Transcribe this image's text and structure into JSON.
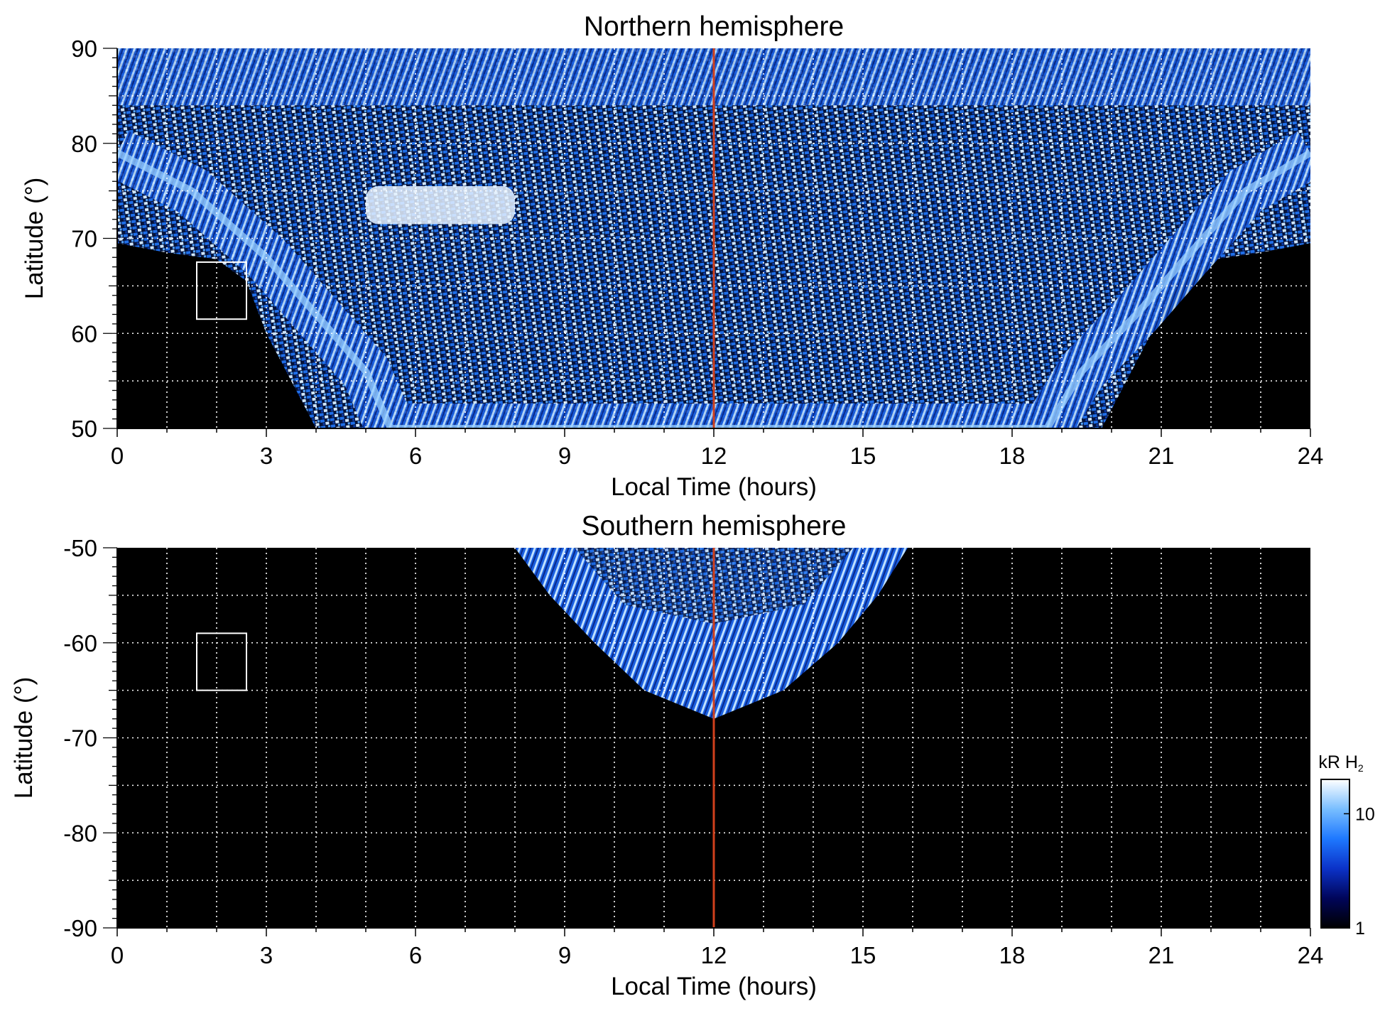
{
  "chart_data": [
    {
      "type": "heatmap",
      "title": "Northern hemisphere",
      "xlabel": "Local Time (hours)",
      "ylabel": "Latitude (°)",
      "xlim": [
        0,
        24
      ],
      "ylim": [
        50,
        90
      ],
      "xticks": [
        0,
        3,
        6,
        9,
        12,
        15,
        18,
        21,
        24
      ],
      "xtick_labels": [
        "0",
        "3",
        "6",
        "9",
        "12",
        "15",
        "18",
        "21",
        "24"
      ],
      "yticks": [
        50,
        60,
        70,
        80,
        90
      ],
      "ytick_labels": [
        "50",
        "60",
        "70",
        "80",
        "90"
      ],
      "grid": true,
      "vline_x": 12,
      "vline_color": "#d0401c",
      "box": {
        "x": [
          1.6,
          2.6
        ],
        "y": [
          61.5,
          67.5
        ]
      },
      "coverage_boundary": [
        [
          0,
          69.5
        ],
        [
          1,
          68.5
        ],
        [
          2,
          67.8
        ],
        [
          2.6,
          65.5
        ],
        [
          3,
          60
        ],
        [
          3.5,
          55
        ],
        [
          4,
          50
        ],
        [
          19.8,
          50
        ],
        [
          20.3,
          55
        ],
        [
          20.8,
          60
        ],
        [
          21.3,
          65
        ],
        [
          22.1,
          67.8
        ],
        [
          23,
          68.5
        ],
        [
          24,
          69.5
        ]
      ],
      "auroral_oval": [
        [
          0,
          79
        ],
        [
          1.5,
          75
        ],
        [
          3,
          68
        ],
        [
          4,
          62
        ],
        [
          5,
          56
        ],
        [
          5.5,
          50
        ],
        [
          18.7,
          50
        ],
        [
          19.4,
          56
        ],
        [
          20.5,
          62
        ],
        [
          21.5,
          68
        ],
        [
          22.7,
          75
        ],
        [
          24,
          79
        ]
      ],
      "cusp_feature": {
        "x": [
          5,
          8
        ],
        "y": [
          71.5,
          75.5
        ]
      }
    },
    {
      "type": "heatmap",
      "title": "Southern hemisphere",
      "xlabel": "Local Time (hours)",
      "ylabel": "Latitude (°)",
      "xlim": [
        0,
        24
      ],
      "ylim": [
        -90,
        -50
      ],
      "xticks": [
        0,
        3,
        6,
        9,
        12,
        15,
        18,
        21,
        24
      ],
      "xtick_labels": [
        "0",
        "3",
        "6",
        "9",
        "12",
        "15",
        "18",
        "21",
        "24"
      ],
      "yticks": [
        -90,
        -80,
        -70,
        -60,
        -50
      ],
      "ytick_labels": [
        "-90",
        "-80",
        "-70",
        "-60",
        "-50"
      ],
      "grid": true,
      "vline_x": 12,
      "vline_color": "#d0401c",
      "box": {
        "x": [
          1.6,
          2.6
        ],
        "y": [
          -65,
          -59
        ]
      },
      "coverage_boundary": [
        [
          8,
          -50
        ],
        [
          8.7,
          -55
        ],
        [
          9.6,
          -60
        ],
        [
          10.6,
          -65
        ],
        [
          12,
          -68
        ],
        [
          13.4,
          -65
        ],
        [
          14.5,
          -60
        ],
        [
          15.3,
          -55
        ],
        [
          15.9,
          -50
        ]
      ],
      "colorbar": {
        "label_main": "kR H",
        "label_sub": "2",
        "scale": "log",
        "range": [
          1,
          20
        ],
        "ticks": [
          1,
          10
        ],
        "tick_labels": [
          "1",
          "10"
        ],
        "colors": [
          "#000000",
          "#00055a",
          "#0b32c8",
          "#1e78ff",
          "#78beff",
          "#ffffff"
        ]
      }
    }
  ]
}
